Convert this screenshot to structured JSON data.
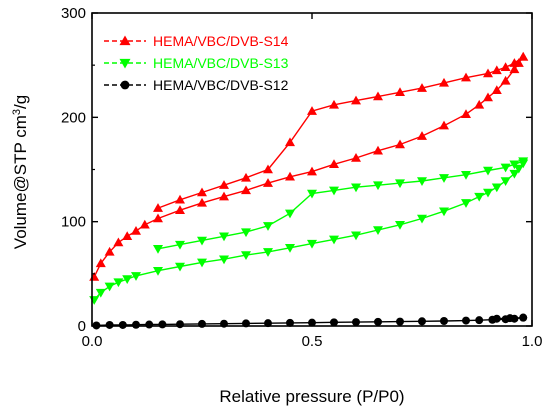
{
  "chart_data": {
    "type": "scatter",
    "xlabel": "Relative pressure (P/P0)",
    "ylabel_main": "Volume@STP cm",
    "ylabel_sup": "3",
    "ylabel_tail": "/g",
    "xlim": [
      0.0,
      1.0
    ],
    "ylim": [
      0,
      300
    ],
    "xticks": [
      0.0,
      0.5,
      1.0
    ],
    "xtick_labels": [
      "0.0",
      "0.5",
      "1.0"
    ],
    "yticks": [
      0,
      100,
      200,
      300
    ],
    "ytick_labels": [
      "0",
      "100",
      "200",
      "300"
    ],
    "legend_position": "top-left",
    "series": [
      {
        "name": "HEMA/VBC/DVB-S14",
        "color": "#ff0000",
        "marker": "triangle-up",
        "adsorption": {
          "x": [
            0.005,
            0.02,
            0.04,
            0.06,
            0.08,
            0.1,
            0.12,
            0.15,
            0.2,
            0.25,
            0.3,
            0.35,
            0.4,
            0.45,
            0.5,
            0.55,
            0.6,
            0.65,
            0.7,
            0.75,
            0.8,
            0.85,
            0.88,
            0.9,
            0.92,
            0.94,
            0.96,
            0.97,
            0.98
          ],
          "y": [
            47,
            60,
            71,
            80,
            86,
            91,
            97,
            103,
            111,
            118,
            124,
            130,
            137,
            143,
            148,
            155,
            161,
            168,
            174,
            182,
            192,
            203,
            212,
            219,
            226,
            235,
            246,
            252,
            258
          ]
        },
        "desorption": {
          "x": [
            0.98,
            0.96,
            0.94,
            0.92,
            0.9,
            0.85,
            0.8,
            0.75,
            0.7,
            0.65,
            0.6,
            0.55,
            0.5,
            0.45,
            0.4,
            0.35,
            0.3,
            0.25,
            0.2,
            0.15
          ],
          "y": [
            258,
            252,
            248,
            245,
            242,
            238,
            233,
            228,
            224,
            220,
            216,
            212,
            206,
            176,
            150,
            142,
            135,
            128,
            121,
            113
          ]
        }
      },
      {
        "name": "HEMA/VBC/DVB-S13",
        "color": "#00ff00",
        "marker": "triangle-down",
        "adsorption": {
          "x": [
            0.005,
            0.02,
            0.04,
            0.06,
            0.08,
            0.1,
            0.15,
            0.2,
            0.25,
            0.3,
            0.35,
            0.4,
            0.45,
            0.5,
            0.55,
            0.6,
            0.65,
            0.7,
            0.75,
            0.8,
            0.85,
            0.88,
            0.9,
            0.92,
            0.94,
            0.96,
            0.97,
            0.98
          ],
          "y": [
            25,
            32,
            38,
            42,
            45,
            48,
            53,
            57,
            61,
            64,
            68,
            71,
            75,
            79,
            83,
            87,
            92,
            97,
            103,
            110,
            118,
            124,
            128,
            133,
            139,
            146,
            151,
            156
          ]
        },
        "desorption": {
          "x": [
            0.98,
            0.96,
            0.94,
            0.9,
            0.85,
            0.8,
            0.75,
            0.7,
            0.65,
            0.6,
            0.55,
            0.5,
            0.45,
            0.4,
            0.35,
            0.3,
            0.25,
            0.2,
            0.15
          ],
          "y": [
            158,
            155,
            152,
            149,
            145,
            142,
            139,
            137,
            135,
            133,
            130,
            127,
            108,
            96,
            90,
            86,
            82,
            78,
            74
          ]
        }
      },
      {
        "name": "HEMA/VBC/DVB-S12",
        "color": "#000000",
        "marker": "circle",
        "adsorption": {
          "x": [
            0.01,
            0.04,
            0.07,
            0.1,
            0.13,
            0.16,
            0.2,
            0.25,
            0.3,
            0.35,
            0.4,
            0.45,
            0.5,
            0.55,
            0.6,
            0.65,
            0.7,
            0.75,
            0.8,
            0.85,
            0.88,
            0.91,
            0.94,
            0.96,
            0.98
          ],
          "y": [
            0.5,
            1,
            1,
            1.2,
            1.4,
            1.5,
            1.7,
            2,
            2.2,
            2.5,
            2.7,
            3,
            3.2,
            3.5,
            3.7,
            4,
            4.2,
            4.5,
            4.8,
            5.2,
            5.6,
            6,
            6.5,
            7,
            8
          ]
        },
        "desorption": {
          "x": [
            0.98,
            0.95,
            0.92
          ],
          "y": [
            8,
            7.5,
            7
          ]
        }
      }
    ]
  }
}
